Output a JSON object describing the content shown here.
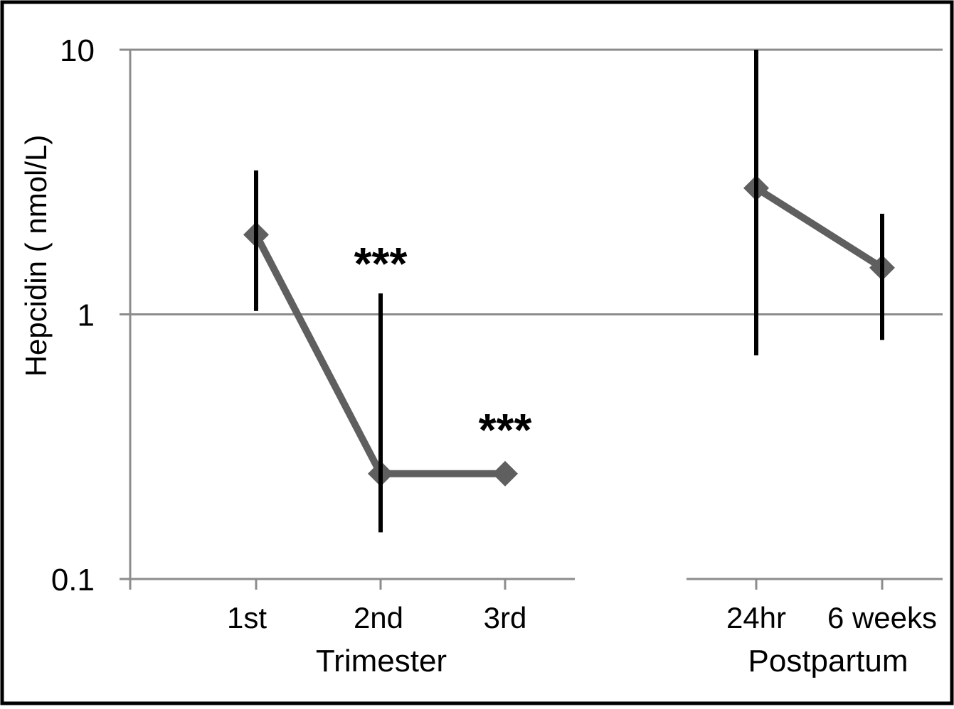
{
  "chart_data": {
    "type": "line",
    "ylabel": "Hepcidin ( nmol/L)",
    "yscale": "log",
    "ylim": [
      0.1,
      10
    ],
    "y_ticks": [
      "0.1",
      "1",
      "10"
    ],
    "grid": "horizontal",
    "line_color": "#5f5f5f",
    "errorbar_color": "#000000",
    "groups": [
      {
        "label": "Trimester",
        "categories": [
          "1st",
          "2nd",
          "3rd"
        ],
        "values": [
          2.0,
          0.25,
          0.25
        ],
        "error_low": [
          1.03,
          0.15,
          null
        ],
        "error_high": [
          3.5,
          1.2,
          null
        ],
        "annotations": [
          "",
          "***",
          "***"
        ]
      },
      {
        "label": "Postpartum",
        "categories": [
          "24hr",
          "6 weeks"
        ],
        "values": [
          3.0,
          1.5
        ],
        "error_low": [
          0.7,
          0.8
        ],
        "error_high": [
          10,
          2.4
        ],
        "annotations": [
          "",
          ""
        ]
      }
    ]
  }
}
